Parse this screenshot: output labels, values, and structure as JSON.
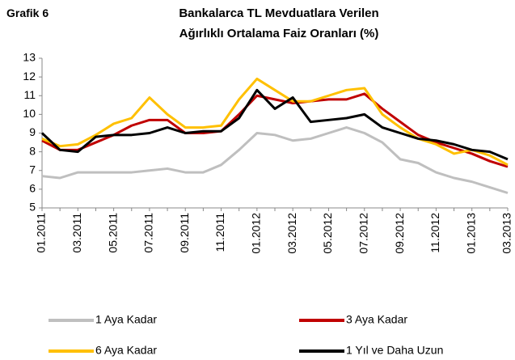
{
  "chart_data": {
    "type": "line",
    "label": "Grafik 6",
    "title": "Bankalarca TL Mevduatlara Verilen Ağırlıklı Ortalama Faiz Oranları (%)",
    "categories": [
      "01.2011",
      null,
      "03.2011",
      null,
      "05.2011",
      null,
      "07.2011",
      null,
      "09.2011",
      null,
      "11.2011",
      null,
      "01.2012",
      null,
      "03.2012",
      null,
      "05.2012",
      null,
      "07.2012",
      null,
      "09.2012",
      null,
      "11.2012",
      null,
      "01.2013",
      null,
      "03.2013"
    ],
    "series": [
      {
        "name": "1 Aya Kadar",
        "color": "#bfbfbf",
        "values": [
          6.7,
          6.6,
          6.9,
          6.9,
          6.9,
          6.9,
          7.0,
          7.1,
          6.9,
          6.9,
          7.3,
          8.1,
          9.0,
          8.9,
          8.6,
          8.7,
          9.0,
          9.3,
          9.0,
          8.5,
          7.6,
          7.4,
          6.9,
          6.6,
          6.4,
          6.1,
          5.8
        ]
      },
      {
        "name": "3 Aya Kadar",
        "color": "#c00000",
        "values": [
          8.6,
          8.1,
          8.1,
          8.5,
          8.9,
          9.4,
          9.7,
          9.7,
          9.0,
          9.0,
          9.1,
          10.0,
          11.0,
          10.8,
          10.6,
          10.7,
          10.8,
          10.8,
          11.1,
          10.3,
          9.6,
          8.9,
          8.5,
          8.2,
          7.9,
          7.5,
          7.2
        ]
      },
      {
        "name": "6 Aya Kadar",
        "color": "#ffc000",
        "values": [
          8.7,
          8.3,
          8.4,
          8.9,
          9.5,
          9.8,
          10.9,
          10.0,
          9.3,
          9.3,
          9.4,
          10.8,
          11.9,
          11.3,
          10.7,
          10.7,
          11.0,
          11.3,
          11.4,
          10.0,
          9.3,
          8.7,
          8.4,
          7.9,
          8.1,
          7.8,
          7.3
        ]
      },
      {
        "name": "1 Yıl ve Daha Uzun",
        "color": "#000000",
        "values": [
          9.0,
          8.1,
          8.0,
          8.8,
          8.9,
          8.9,
          9.0,
          9.3,
          9.0,
          9.1,
          9.1,
          9.8,
          11.3,
          10.3,
          10.9,
          9.6,
          9.7,
          9.8,
          10.0,
          9.3,
          9.0,
          8.7,
          8.6,
          8.4,
          8.1,
          8.0,
          7.6
        ]
      }
    ],
    "ylim": [
      5,
      13
    ],
    "yticks": [
      5,
      6,
      7,
      8,
      9,
      10,
      11,
      12,
      13
    ],
    "grid": false
  }
}
